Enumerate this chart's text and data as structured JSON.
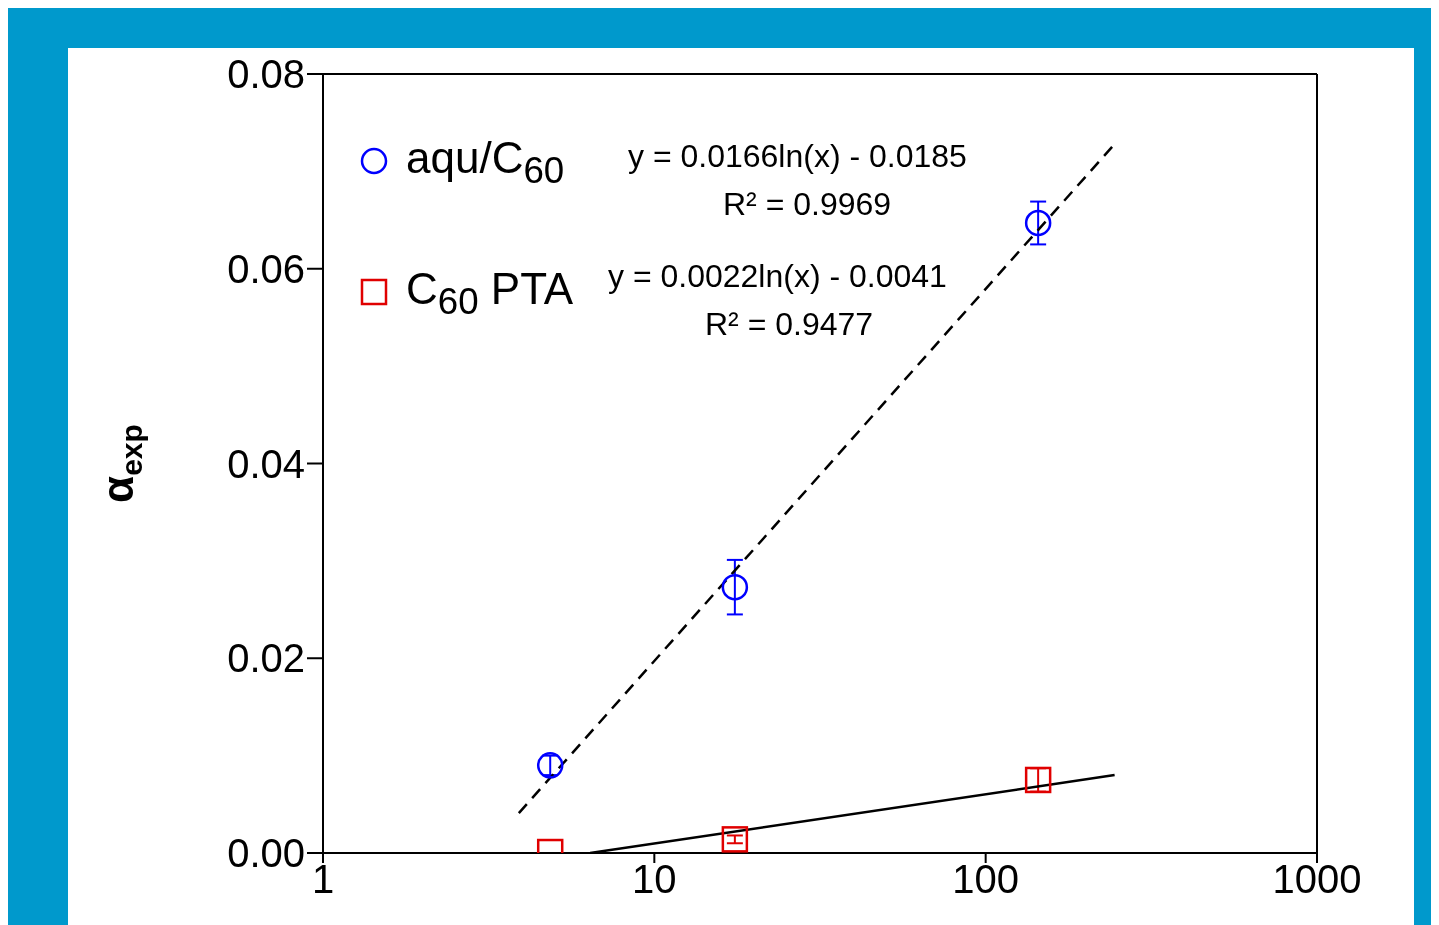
{
  "chart_data": {
    "type": "scatter",
    "ylabel": "α$_{exp}$",
    "xlim": [
      1,
      1000
    ],
    "xticks": [
      1,
      10,
      100,
      1000
    ],
    "log": "x",
    "ylim": [
      0,
      0.08
    ],
    "yticks": [
      {
        "value": 0,
        "label": "0.00"
      },
      {
        "value": 0.02,
        "label": "0.02"
      },
      {
        "value": 0.04,
        "label": "0.04"
      },
      {
        "value": 0.06,
        "label": "0.06"
      },
      {
        "value": 0.08,
        "label": "0.08"
      }
    ],
    "grid": false,
    "legend": "top left",
    "series": [
      {
        "name": "aqu/C$_{60}$",
        "marker": "circle",
        "color": "#0000ff",
        "x": [
          4.85,
          17.5,
          144
        ],
        "values": [
          0.009,
          0.0273,
          0.0647
        ],
        "errors": [
          0.001,
          0.0028,
          0.0022
        ]
      },
      {
        "name": "C$_{60}$ PTA",
        "marker": "square",
        "color": "#e00000",
        "x": [
          4.85,
          17.5,
          144
        ],
        "values": [
          0.0001,
          0.0014,
          0.0075
        ],
        "errors": [
          null,
          0.0004,
          0.0012
        ]
      },
      {
        "type": "line",
        "line_style": "dashed",
        "marker": "none",
        "color": "#000000",
        "x": [
          3.9,
          245
        ],
        "values": [
          0.0041,
          0.0728
        ]
      },
      {
        "type": "line",
        "line_style": "solid",
        "marker": "none",
        "color": "#000000",
        "x": [
          6.4,
          245
        ],
        "values": [
          0,
          0.008
        ]
      }
    ],
    "annotations": [
      "y = 0.0166ln(x) - 0.0185",
      "R² = 0.9969",
      "y = 0.0022ln(x) - 0.0041",
      "R² = 0.9477"
    ]
  }
}
